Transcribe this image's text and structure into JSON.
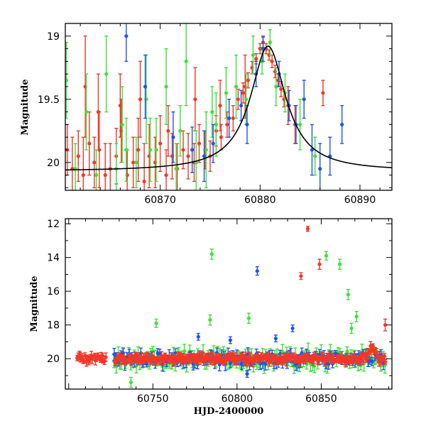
{
  "chart_data": [
    {
      "type": "scatter",
      "panel": "top",
      "title": "",
      "xlabel": "",
      "ylabel": "Magnitude",
      "xlim": [
        60860.5,
        60893.2
      ],
      "ylim": [
        20.22,
        18.9
      ],
      "y_inverted": true,
      "xticks": [
        60870,
        60880,
        60890
      ],
      "xtick_labels": [
        "60870",
        "60880",
        "60890"
      ],
      "yticks": [
        19.0,
        19.5,
        20.0
      ],
      "ytick_labels": [
        "19",
        "19.5",
        "20"
      ],
      "colors": {
        "red": "#f0382a",
        "green": "#3ee03a",
        "blue": "#1f55e6",
        "model": "#000000"
      },
      "model_curve": {
        "peak_x": 60880.8,
        "peak_y": 19.08,
        "baseline": 20.07,
        "amplitude": 0.99,
        "width": 2.15
      },
      "series": [
        {
          "color_key": "red",
          "x": [
            60860.7,
            60861.2,
            60861.8,
            60862.3,
            60862.9,
            60863.4,
            60863.9,
            60864.5,
            60865.0,
            60865.6,
            60866.1,
            60866.7,
            60867.3,
            60867.8,
            60868.4,
            60868.9,
            60869.5,
            60870.0,
            60870.6,
            60871.2,
            60871.7,
            60872.3,
            60872.8,
            60873.4,
            60873.9,
            60874.5,
            60875.0,
            60875.6,
            60876.1,
            60876.7,
            60877.3,
            60877.8,
            60878.3,
            60878.8,
            60879.2,
            60879.6,
            60880.0,
            60880.3,
            60880.6,
            60880.9,
            60881.2,
            60881.5,
            60881.8,
            60882.1,
            60882.4,
            60862.5,
            60863.8,
            60866.0,
            60868.0,
            60870.8,
            60873.5,
            60876.0,
            60878.5,
            60882.8,
            60883.5,
            60886.3
          ],
          "y": [
            19.9,
            20.05,
            19.95,
            20.1,
            19.85,
            20.0,
            19.9,
            20.1,
            20.05,
            19.95,
            19.75,
            20.1,
            20.0,
            19.9,
            20.15,
            19.95,
            20.0,
            19.85,
            20.1,
            19.95,
            20.05,
            19.9,
            19.95,
            20.0,
            19.85,
            19.9,
            19.95,
            19.75,
            19.8,
            19.7,
            19.65,
            19.5,
            19.45,
            19.35,
            19.25,
            19.18,
            19.1,
            19.05,
            19.1,
            19.15,
            19.2,
            19.28,
            19.35,
            19.42,
            19.5,
            19.4,
            19.6,
            19.55,
            19.5,
            19.75,
            19.5,
            19.55,
            19.4,
            19.55,
            19.7,
            19.45
          ],
          "err": [
            0.2,
            0.25,
            0.2,
            0.3,
            0.25,
            0.2,
            0.3,
            0.25,
            0.2,
            0.22,
            0.25,
            0.2,
            0.2,
            0.25,
            0.3,
            0.25,
            0.2,
            0.22,
            0.2,
            0.18,
            0.2,
            0.15,
            0.18,
            0.15,
            0.15,
            0.15,
            0.12,
            0.12,
            0.1,
            0.1,
            0.1,
            0.08,
            0.08,
            0.06,
            0.05,
            0.04,
            0.04,
            0.04,
            0.04,
            0.04,
            0.05,
            0.05,
            0.05,
            0.06,
            0.06,
            0.4,
            0.3,
            0.25,
            0.3,
            0.2,
            0.25,
            0.2,
            0.25,
            0.15,
            0.15,
            0.1
          ]
        },
        {
          "color_key": "green",
          "x": [
            60860.6,
            60861.5,
            60862.6,
            60863.6,
            60864.6,
            60865.6,
            60866.6,
            60867.6,
            60868.6,
            60869.6,
            60870.6,
            60871.6,
            60872.6,
            60873.6,
            60874.6,
            60875.6,
            60876.6,
            60877.6,
            60878.6,
            60879.3,
            60880.2,
            60881.0,
            60881.6,
            60882.5,
            60884.0,
            60885.5,
            60875.2,
            60872.0,
            60869.0,
            60866.2
          ],
          "y": [
            19.35,
            20.05,
            19.6,
            20.1,
            19.3,
            20.05,
            19.9,
            20.0,
            19.5,
            19.9,
            19.4,
            20.05,
            19.2,
            20.0,
            19.9,
            19.7,
            19.45,
            19.4,
            19.5,
            19.15,
            19.2,
            19.05,
            19.4,
            19.45,
            19.7,
            19.95,
            19.6,
            19.75,
            19.9,
            19.7
          ],
          "err": [
            0.3,
            0.2,
            0.3,
            0.2,
            0.3,
            0.2,
            0.25,
            0.2,
            0.35,
            0.25,
            0.3,
            0.2,
            0.35,
            0.25,
            0.3,
            0.25,
            0.2,
            0.25,
            0.2,
            0.15,
            0.1,
            0.1,
            0.15,
            0.15,
            0.2,
            0.15,
            0.2,
            0.2,
            0.25,
            0.3
          ]
        },
        {
          "color_key": "blue",
          "x": [
            60866.6,
            60868.5,
            60871.3,
            60873.2,
            60875.3,
            60876.9,
            60878.1,
            60879.6,
            60881.9,
            60882.9,
            60883.6,
            60884.4,
            60885.2,
            60886.0,
            60887.0,
            60888.2,
            60880.3,
            60878.7,
            60874.4
          ],
          "y": [
            19.0,
            19.4,
            19.8,
            19.9,
            19.85,
            19.65,
            19.55,
            19.3,
            19.3,
            19.55,
            19.7,
            19.5,
            19.9,
            20.05,
            19.95,
            19.7,
            19.1,
            19.7,
            19.95
          ],
          "err": [
            0.2,
            0.25,
            0.2,
            0.18,
            0.15,
            0.15,
            0.12,
            0.1,
            0.1,
            0.12,
            0.15,
            0.15,
            0.2,
            0.2,
            0.15,
            0.15,
            0.1,
            0.15,
            0.2
          ]
        }
      ]
    },
    {
      "type": "scatter",
      "panel": "bottom",
      "title": "",
      "xlabel": "HJD-2400000",
      "ylabel": "Magnitude",
      "xlim": [
        60698,
        60892
      ],
      "ylim": [
        21.8,
        11.7
      ],
      "y_inverted": true,
      "xticks": [
        60750,
        60800,
        60850
      ],
      "xtick_labels": [
        "60750",
        "60800",
        "60850"
      ],
      "yticks": [
        12,
        14,
        16,
        18,
        20
      ],
      "ytick_labels": [
        "12",
        "14",
        "16",
        "18",
        "20"
      ],
      "colors": {
        "red": "#f0382a",
        "green": "#3ee03a",
        "blue": "#1f55e6"
      },
      "baseline_mag": 20.0,
      "outliers": [
        {
          "color_key": "red",
          "x": 60842,
          "y": 12.3,
          "err": 0.15
        },
        {
          "color_key": "red",
          "x": 60838,
          "y": 15.1,
          "err": 0.2
        },
        {
          "color_key": "red",
          "x": 60849,
          "y": 14.4,
          "err": 0.3
        },
        {
          "color_key": "red",
          "x": 60888,
          "y": 18.0,
          "err": 0.35
        },
        {
          "color_key": "green",
          "x": 60785,
          "y": 13.8,
          "err": 0.3
        },
        {
          "color_key": "green",
          "x": 60853,
          "y": 13.9,
          "err": 0.25
        },
        {
          "color_key": "green",
          "x": 60861,
          "y": 14.4,
          "err": 0.3
        },
        {
          "color_key": "green",
          "x": 60866,
          "y": 16.2,
          "err": 0.3
        },
        {
          "color_key": "green",
          "x": 60871,
          "y": 17.5,
          "err": 0.3
        },
        {
          "color_key": "green",
          "x": 60752,
          "y": 17.9,
          "err": 0.25
        },
        {
          "color_key": "green",
          "x": 60784,
          "y": 17.7,
          "err": 0.3
        },
        {
          "color_key": "green",
          "x": 60807,
          "y": 17.6,
          "err": 0.3
        },
        {
          "color_key": "green",
          "x": 60868,
          "y": 18.2,
          "err": 0.3
        },
        {
          "color_key": "green",
          "x": 60737,
          "y": 21.4,
          "err": 0.3
        },
        {
          "color_key": "blue",
          "x": 60812,
          "y": 14.8,
          "err": 0.25
        },
        {
          "color_key": "blue",
          "x": 60833,
          "y": 18.2,
          "err": 0.2
        },
        {
          "color_key": "blue",
          "x": 60823,
          "y": 18.8,
          "err": 0.2
        },
        {
          "color_key": "blue",
          "x": 60796,
          "y": 18.9,
          "err": 0.2
        },
        {
          "color_key": "blue",
          "x": 60777,
          "y": 18.7,
          "err": 0.2
        },
        {
          "color_key": "blue",
          "x": 60806,
          "y": 20.9,
          "err": 0.2
        }
      ]
    }
  ]
}
